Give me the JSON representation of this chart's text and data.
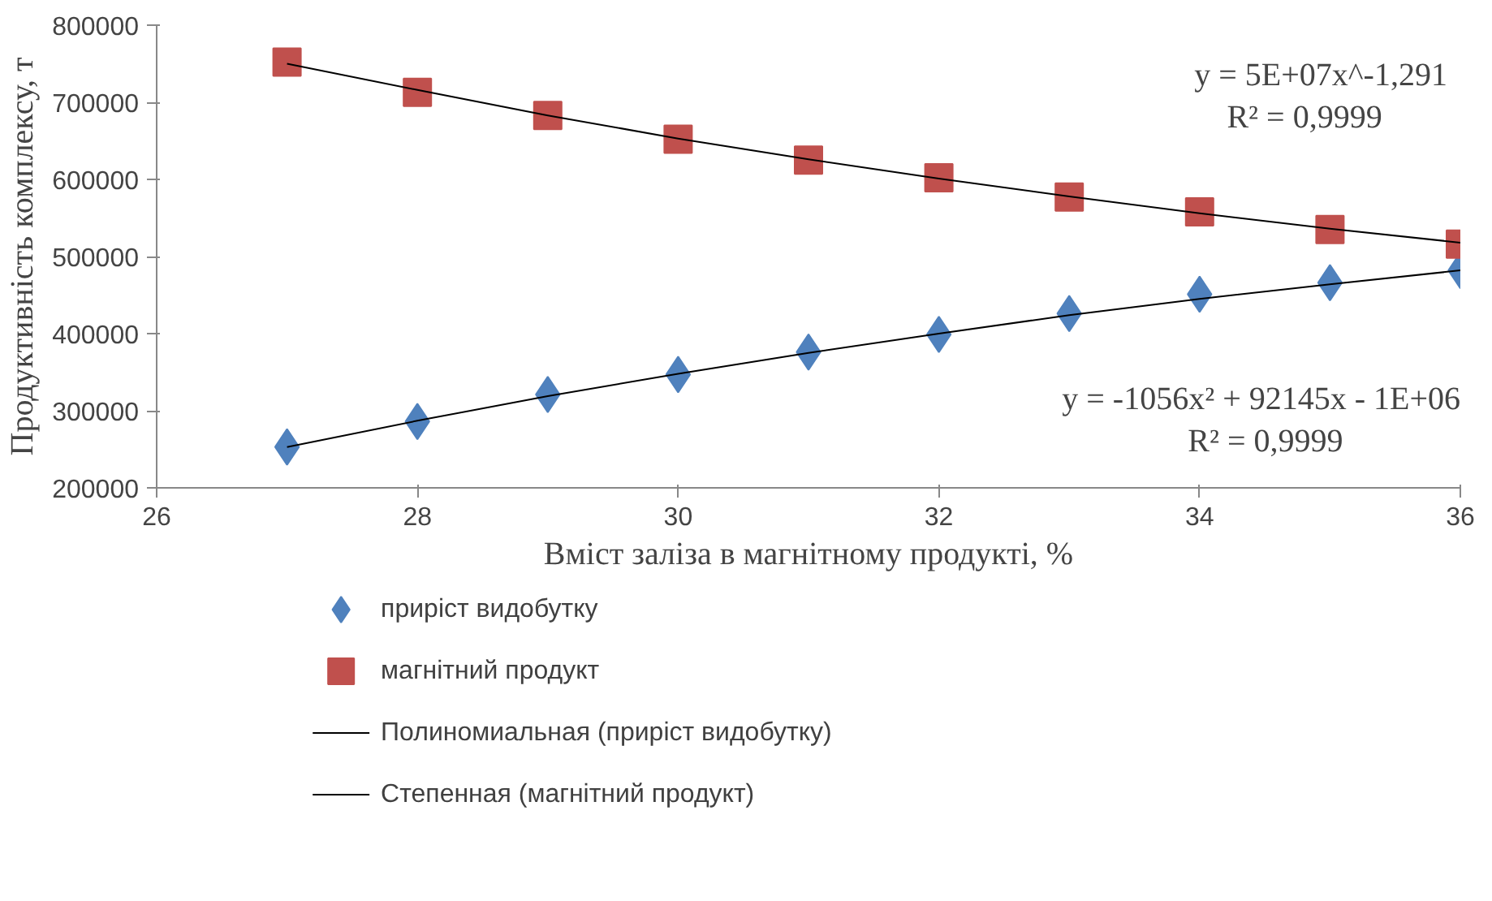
{
  "chart_data": {
    "type": "scatter",
    "xlabel": "Вміст заліза в магнітному продукті, %",
    "ylabel": "Продуктивність комплексу, т",
    "x": [
      27,
      28,
      29,
      30,
      31,
      32,
      33,
      34,
      35,
      36
    ],
    "xlim": [
      26,
      36
    ],
    "xticks": [
      26,
      28,
      30,
      32,
      34,
      36
    ],
    "ylim": [
      200000,
      800000
    ],
    "yticks": [
      200000,
      300000,
      400000,
      500000,
      600000,
      700000,
      800000
    ],
    "grid": false,
    "legend": "bottom",
    "series": [
      {
        "name": "приріст видобутку",
        "color": "#4f81bd",
        "marker": "diamond",
        "values": [
          253000,
          286000,
          321000,
          347000,
          376000,
          399000,
          426000,
          451000,
          466000,
          482000
        ]
      },
      {
        "name": "магнітний продукт",
        "color": "#c0504d",
        "marker": "square",
        "values": [
          752000,
          713000,
          683000,
          652000,
          625000,
          602000,
          577000,
          558000,
          535000,
          516000
        ]
      },
      {
        "name": "Полиномиальная (приріст видобутку)",
        "type": "line",
        "color": "#000000",
        "x": [
          27,
          28,
          29,
          30,
          31,
          32,
          33,
          34,
          35,
          36
        ],
        "values": [
          253000,
          287000,
          319000,
          348000,
          375000,
          400000,
          424000,
          445000,
          464000,
          482000
        ]
      },
      {
        "name": "Степенная (магнітний продукт)",
        "type": "line",
        "color": "#000000",
        "x": [
          27,
          28,
          29,
          30,
          31,
          32,
          33,
          34,
          35,
          36
        ],
        "values": [
          750000,
          716000,
          683000,
          653000,
          626000,
          601000,
          578000,
          556000,
          536000,
          518000
        ]
      }
    ],
    "annotations": [
      "y = 5E+07x^-1,291",
      "R² = 0,9999",
      "y = -1056x² + 92145x - 1E+06",
      "R² = 0,9999"
    ]
  }
}
